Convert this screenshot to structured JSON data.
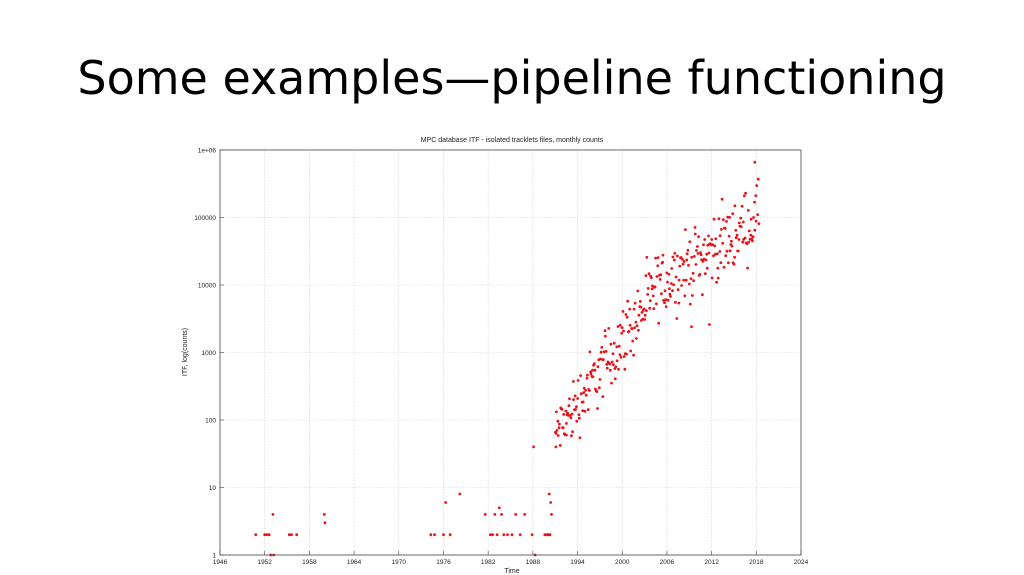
{
  "slide": {
    "title": "Some examples—pipeline functioning"
  },
  "chart_data": {
    "type": "scatter",
    "title": "MPC database ITF - isolated tracklets files, monthly counts",
    "xlabel": "Time",
    "ylabel": "ITF, log(counts)",
    "xscale": "time (years)",
    "yscale": "log10",
    "xlim": [
      1946,
      2024
    ],
    "ylim": [
      1,
      1000000
    ],
    "x_ticks": [
      "1946",
      "1952",
      "1958",
      "1964",
      "1970",
      "1976",
      "1982",
      "1988",
      "1994",
      "2000",
      "2006",
      "2012",
      "2018",
      "2024"
    ],
    "y_ticks": [
      "1",
      "10",
      "100",
      "1000",
      "10000",
      "100000",
      "1e+06"
    ],
    "grid": true,
    "marker_color": "#e8141c",
    "series": [
      {
        "points": [
          [
            1950.8,
            2
          ],
          [
            1952.0,
            2
          ],
          [
            1952.3,
            2
          ],
          [
            1952.6,
            2
          ],
          [
            1953.1,
            4
          ],
          [
            1952.8,
            1
          ],
          [
            1953.2,
            1
          ],
          [
            1955.3,
            2
          ],
          [
            1955.6,
            2
          ],
          [
            1956.3,
            2
          ],
          [
            1960.0,
            4
          ],
          [
            1960.1,
            3
          ],
          [
            1974.3,
            2
          ],
          [
            1974.8,
            2
          ],
          [
            1976.0,
            2
          ],
          [
            1976.3,
            6
          ],
          [
            1976.9,
            2
          ],
          [
            1978.2,
            8
          ],
          [
            1981.6,
            4
          ],
          [
            1982.3,
            2
          ],
          [
            1982.6,
            2
          ],
          [
            1982.9,
            4
          ],
          [
            1983.2,
            2
          ],
          [
            1983.5,
            5
          ],
          [
            1983.8,
            4
          ],
          [
            1984.1,
            2
          ],
          [
            1984.6,
            2
          ],
          [
            1985.2,
            2
          ],
          [
            1985.7,
            4
          ],
          [
            1986.3,
            2
          ],
          [
            1986.9,
            4
          ],
          [
            1987.9,
            2
          ],
          [
            1988.1,
            40
          ],
          [
            1988.3,
            1
          ],
          [
            1989.6,
            2
          ],
          [
            1989.9,
            2
          ],
          [
            1990.1,
            2
          ],
          [
            1990.3,
            2
          ],
          [
            1990.5,
            4
          ],
          [
            1990.2,
            8
          ],
          [
            1990.4,
            6
          ]
        ]
      }
    ],
    "scatter_rule": "seeded pseudo-random monthly samples 1991-2018 along trend 10^(1.78+0.158*(t-1991)) in the 1990s, flattening after 2005; density ~1 point per month"
  }
}
